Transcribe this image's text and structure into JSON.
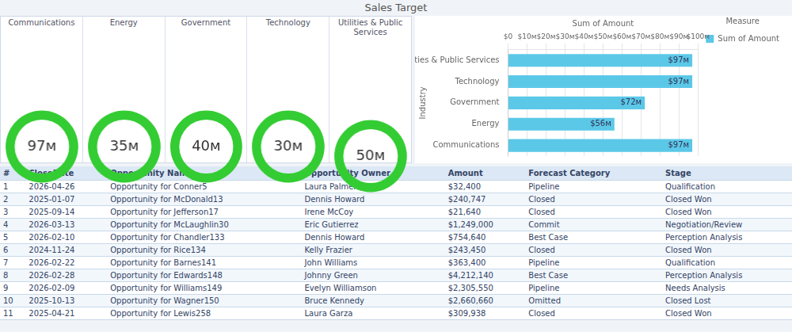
{
  "chart_data": [
    {
      "type": "gauge",
      "categories": [
        "Communications",
        "Energy",
        "Government",
        "Technology",
        "Utilities & Public Services"
      ],
      "values": [
        97,
        35,
        40,
        30,
        50
      ],
      "value_labels": [
        "97м",
        "35м",
        "40м",
        "30м",
        "50м"
      ],
      "color": "#33cc33"
    },
    {
      "type": "bar",
      "title": "Sales Target",
      "orientation": "horizontal",
      "x_label": "Sum of Amount",
      "y_label": "Industry",
      "categories": [
        "Communications",
        "Energy",
        "Government",
        "Technology",
        "Utilities & Public Services"
      ],
      "series": [
        {
          "name": "Sum of Amount",
          "color": "#5bc8e8",
          "values": [
            97,
            56,
            72,
            97,
            97
          ],
          "value_labels": [
            "$97м",
            "$56м",
            "$72м",
            "$97м",
            "$97м"
          ]
        }
      ],
      "xlim": [
        0,
        100
      ],
      "xticks": [
        {
          "value": 0,
          "label": "$0"
        },
        {
          "value": 10,
          "label": "$10м"
        },
        {
          "value": 20,
          "label": "$20м"
        },
        {
          "value": 30,
          "label": "$30м"
        },
        {
          "value": 40,
          "label": "$40м"
        },
        {
          "value": 50,
          "label": "$50м"
        },
        {
          "value": 60,
          "label": "$60м"
        },
        {
          "value": 70,
          "label": "$70м"
        },
        {
          "value": 80,
          "label": "$80м"
        },
        {
          "value": 90,
          "label": "$90м"
        },
        {
          "value": 100,
          "label": "$100м"
        }
      ],
      "grid": true,
      "legend": "right",
      "legend_title": "Measure",
      "data_labels": true
    },
    {
      "type": "table",
      "columns": [
        "#",
        "CloseDate",
        "Opportunity Name",
        "Opportunity Owner",
        "Amount",
        "Forecast Category",
        "Stage"
      ],
      "rows": [
        [
          "1",
          "2026-04-26",
          "Opportunity for Conner5",
          "Laura Palmer",
          "$32,400",
          "Pipeline",
          "Qualification"
        ],
        [
          "2",
          "2025-01-07",
          "Opportunity for McDonald13",
          "Dennis Howard",
          "$240,747",
          "Closed",
          "Closed Won"
        ],
        [
          "3",
          "2025-09-14",
          "Opportunity for Jefferson17",
          "Irene McCoy",
          "$21,640",
          "Closed",
          "Closed Won"
        ],
        [
          "4",
          "2026-03-13",
          "Opportunity for McLaughlin30",
          "Eric Gutierrez",
          "$1,249,000",
          "Commit",
          "Negotiation/Review"
        ],
        [
          "5",
          "2026-02-10",
          "Opportunity for Chandler133",
          "Dennis Howard",
          "$754,640",
          "Best Case",
          "Perception Analysis"
        ],
        [
          "6",
          "2024-11-24",
          "Opportunity for Rice134",
          "Kelly Frazier",
          "$243,450",
          "Closed",
          "Closed Won"
        ],
        [
          "7",
          "2026-02-22",
          "Opportunity for Barnes141",
          "John Williams",
          "$363,400",
          "Pipeline",
          "Qualification"
        ],
        [
          "8",
          "2026-02-28",
          "Opportunity for Edwards148",
          "Johnny Green",
          "$4,212,140",
          "Best Case",
          "Perception Analysis"
        ],
        [
          "9",
          "2026-02-09",
          "Opportunity for Williams149",
          "Evelyn Williamson",
          "$2,305,550",
          "Pipeline",
          "Needs Analysis"
        ],
        [
          "10",
          "2025-10-13",
          "Opportunity for Wagner150",
          "Bruce Kennedy",
          "$2,660,660",
          "Omitted",
          "Closed Lost"
        ],
        [
          "11",
          "2025-04-21",
          "Opportunity for Lewis258",
          "Laura Garza",
          "$309,938",
          "Closed",
          "Closed Won"
        ]
      ]
    }
  ]
}
